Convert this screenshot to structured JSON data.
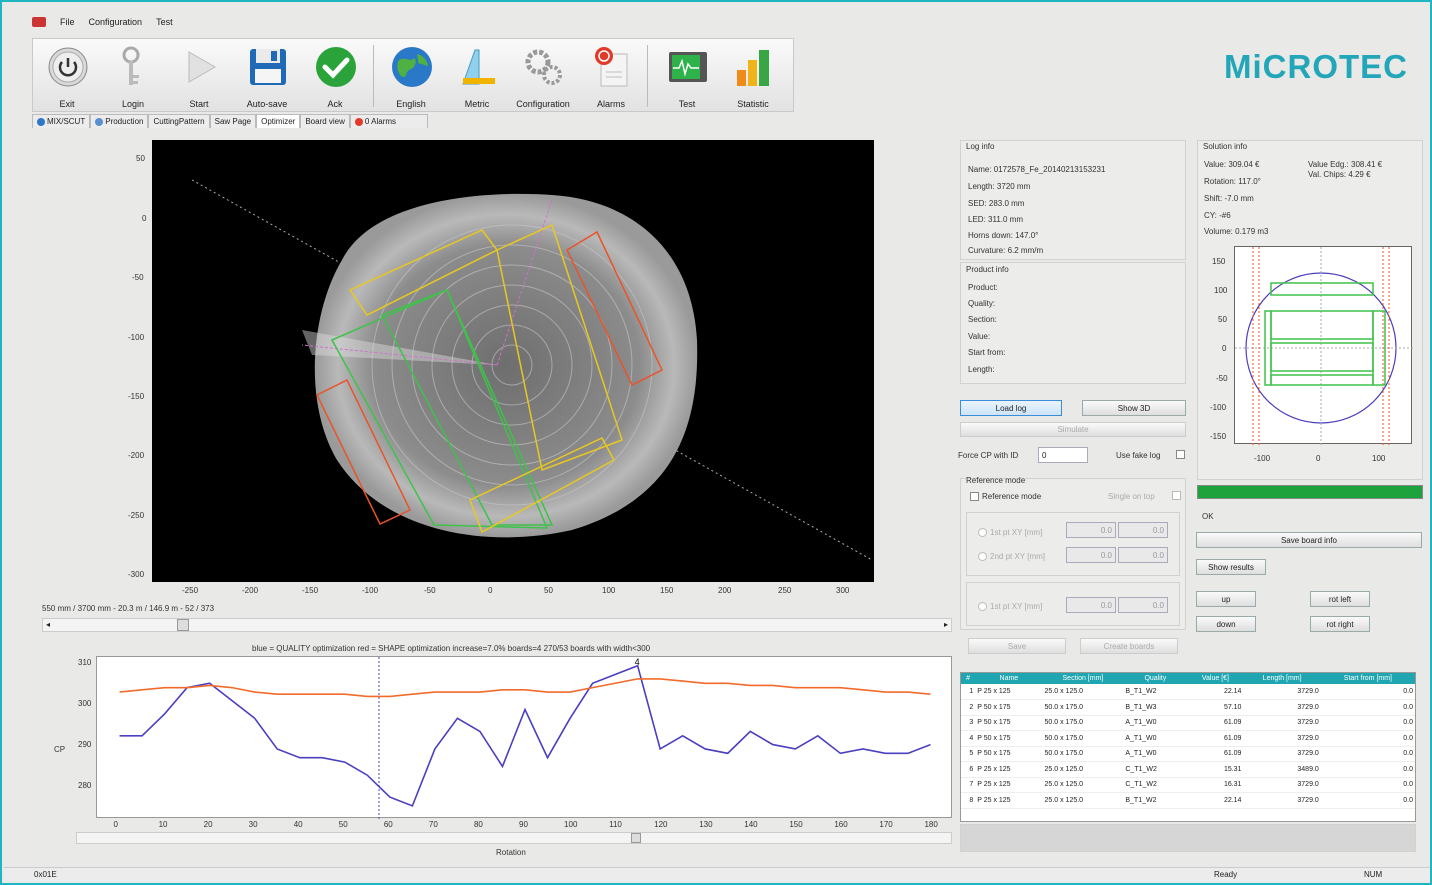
{
  "menu": {
    "items": [
      "File",
      "Configuration",
      "Test"
    ]
  },
  "toolbar": {
    "buttons": [
      {
        "label": "Exit",
        "icon": "power-icon"
      },
      {
        "label": "Login",
        "icon": "keys-icon"
      },
      {
        "label": "Start",
        "icon": "play-icon"
      },
      {
        "label": "Auto-save",
        "icon": "floppy-icon"
      },
      {
        "label": "Ack",
        "icon": "check-icon"
      },
      {
        "label": "English",
        "icon": "globe-icon"
      },
      {
        "label": "Metric",
        "icon": "ruler-icon"
      },
      {
        "label": "Configuration",
        "icon": "gears-icon"
      },
      {
        "label": "Alarms",
        "icon": "alarm-icon"
      },
      {
        "label": "Test",
        "icon": "monitor-icon"
      },
      {
        "label": "Statistic",
        "icon": "bars-icon"
      }
    ]
  },
  "brand": {
    "logo": "MiCROTEC",
    "accent": "#23a6b8"
  },
  "tabs": [
    {
      "label": "MIX/SCUT",
      "active": false
    },
    {
      "label": "Production",
      "active": false
    },
    {
      "label": "CuttingPattern",
      "active": false
    },
    {
      "label": "Saw Page",
      "active": false
    },
    {
      "label": "Optimizer",
      "active": true
    },
    {
      "label": "Board view",
      "active": false
    },
    {
      "label": "0 Alarms",
      "active": false
    }
  ],
  "image_view": {
    "y_ticks": [
      "50",
      "0",
      "-50",
      "-100",
      "-150",
      "-200",
      "-250",
      "-300"
    ],
    "x_ticks": [
      "-250",
      "-200",
      "-150",
      "-100",
      "-50",
      "0",
      "50",
      "100",
      "150",
      "200",
      "250",
      "300"
    ],
    "readout": "550 mm / 3700 mm  -  20.3 m / 146.9 m  -  52 / 373"
  },
  "log_info": {
    "title": "Log info",
    "lines": [
      "Name: 0172578_Fe_20140213153231",
      "Length: 3720 mm",
      "SED: 283.0 mm",
      "LED: 311.0 mm",
      "Horns down: 147.0°",
      "Curvature: 6.2 mm/m"
    ]
  },
  "product_info": {
    "title": "Product info",
    "lines": [
      "Product:",
      "Quality:",
      "Section:",
      "Value:",
      "Start from:",
      "Length:"
    ]
  },
  "solution_info": {
    "title": "Solution info",
    "lines": [
      "Value: 309.04 €",
      "Rotation: 117.0°",
      "Shift: -7.0 mm",
      "CY: -#6",
      "Volume: 0.179 m3"
    ],
    "lines2": [
      "Value Edg.: 308.41 €",
      "Val. Chips: 4.29 €"
    ],
    "y_ticks": [
      "150",
      "100",
      "50",
      "0",
      "-50",
      "-100",
      "-150"
    ],
    "x_ticks": [
      "-100",
      "0",
      "100"
    ],
    "status": "OK"
  },
  "controls": {
    "load_log": "Load log",
    "show_3d": "Show 3D",
    "simulate": "Simulate",
    "force_cp_label": "Force CP with ID",
    "force_cp_value": "0",
    "fake_log_label": "Use fake log",
    "ref_group": "Reference mode",
    "ref_mode_label": "Reference mode",
    "single_top_label": "Single on top",
    "pt1_label": "1st pt XY [mm]",
    "pt2_label": "2nd pt XY [mm]",
    "pt3_label": "1st pt XY [mm]",
    "pt_value": "0.0",
    "save": "Save",
    "create_boards": "Create boards",
    "save_board_info": "Save board info",
    "show_results": "Show results",
    "up": "up",
    "down": "down",
    "rot_left": "rot left",
    "rot_right": "rot right"
  },
  "graph": {
    "legend": "blue = QUALITY optimization   red = SHAPE optimization   increase=7.0%   boards=4 270/53   boards with width<300",
    "y_ticks": [
      "310",
      "300",
      "290",
      "280"
    ],
    "x_ticks": [
      "0",
      "10",
      "20",
      "30",
      "40",
      "50",
      "60",
      "70",
      "80",
      "90",
      "100",
      "110",
      "120",
      "130",
      "140",
      "150",
      "160",
      "170",
      "180"
    ],
    "ylabel": "CP",
    "xlabel": "Rotation",
    "marker": "4"
  },
  "chart_data": {
    "type": "line",
    "xlabel": "Rotation",
    "ylabel": "CP",
    "xlim": [
      -5,
      185
    ],
    "ylim": [
      275,
      312
    ],
    "x": [
      0,
      5,
      10,
      15,
      20,
      25,
      30,
      35,
      40,
      45,
      50,
      55,
      60,
      65,
      70,
      75,
      80,
      85,
      90,
      95,
      100,
      105,
      110,
      115,
      120,
      125,
      130,
      135,
      140,
      145,
      150,
      155,
      160,
      165,
      170,
      175,
      180
    ],
    "series": [
      {
        "color": "#4a3fc0",
        "values": [
          294,
          294,
          299,
          305,
          306,
          302,
          298,
          291,
          289,
          289,
          288,
          285,
          280,
          278,
          291,
          298,
          295,
          287,
          300,
          289,
          298,
          306,
          308,
          310,
          291,
          294,
          291,
          290,
          295,
          292,
          291,
          294,
          290,
          291,
          290,
          290,
          292
        ]
      },
      {
        "color": "#f26b2a",
        "values": [
          304,
          304.5,
          305,
          305,
          305.5,
          305,
          304,
          303.5,
          303.5,
          303.5,
          303.5,
          303,
          303,
          303.5,
          304,
          304,
          304,
          304.5,
          304.5,
          304,
          304,
          305,
          306,
          307,
          307,
          306.5,
          306,
          306,
          305.5,
          305.5,
          305,
          305,
          305,
          304.5,
          304,
          304,
          303.5
        ]
      }
    ]
  },
  "board_table": {
    "headers": [
      "#",
      "Name",
      "Section [mm]",
      "Quality",
      "Value [€]",
      "Length [mm]",
      "Start from [mm]"
    ],
    "rows": [
      [
        "1",
        "P 25 x 125",
        "25.0 x 125.0",
        "B_T1_W2",
        "22.14",
        "3729.0",
        "0.0"
      ],
      [
        "2",
        "P 50 x 175",
        "50.0 x 175.0",
        "B_T1_W3",
        "57.10",
        "3729.0",
        "0.0"
      ],
      [
        "3",
        "P 50 x 175",
        "50.0 x 175.0",
        "A_T1_W0",
        "61.09",
        "3729.0",
        "0.0"
      ],
      [
        "4",
        "P 50 x 175",
        "50.0 x 175.0",
        "A_T1_W0",
        "61.09",
        "3729.0",
        "0.0"
      ],
      [
        "5",
        "P 50 x 175",
        "50.0 x 175.0",
        "A_T1_W0",
        "61.09",
        "3729.0",
        "0.0"
      ],
      [
        "6",
        "P 25 x 125",
        "25.0 x 125.0",
        "C_T1_W2",
        "15.31",
        "3489.0",
        "0.0"
      ],
      [
        "7",
        "P 25 x 125",
        "25.0 x 125.0",
        "C_T1_W2",
        "16.31",
        "3729.0",
        "0.0"
      ],
      [
        "8",
        "P 25 x 125",
        "25.0 x 125.0",
        "B_T1_W2",
        "22.14",
        "3729.0",
        "0.0"
      ]
    ]
  },
  "statusbar": {
    "left": "0x01E",
    "ready": "Ready",
    "num": "NUM"
  }
}
